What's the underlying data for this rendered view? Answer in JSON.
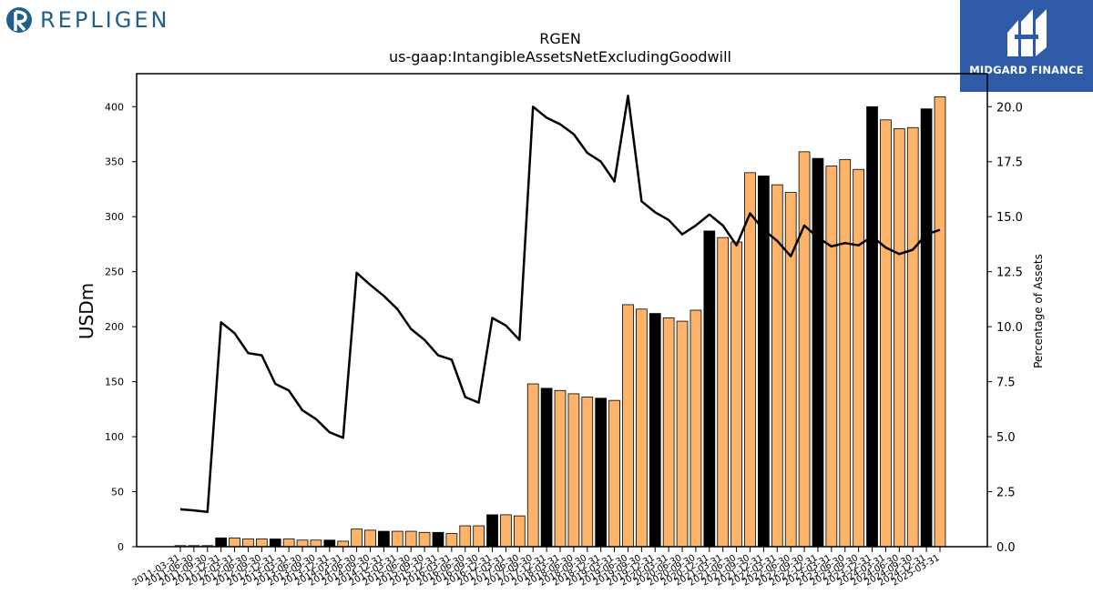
{
  "logos": {
    "left_text": "REPLIGEN",
    "right_text": "MIDGARD FINANCE"
  },
  "colors": {
    "bar_orange": "#FDB46A",
    "bar_black": "#000000",
    "line": "#000000",
    "repligen_blue": "#1f5f8b",
    "midgard_blue": "#2f5aa8"
  },
  "chart_data": {
    "type": "bar",
    "title": "RGEN",
    "subtitle": "us-gaap:IntangibleAssetsNetExcludingGoodwill",
    "ylabel": "USDm",
    "y2label": "Percentage of Assets",
    "ylim": [
      0,
      430
    ],
    "y2lim": [
      0,
      21.5
    ],
    "yticks": [
      0,
      50,
      100,
      150,
      200,
      250,
      300,
      350,
      400
    ],
    "y2ticks": [
      "0.0",
      "2.5",
      "5.0",
      "7.5",
      "10.0",
      "12.5",
      "15.0",
      "17.5",
      "20.0"
    ],
    "grid": false,
    "categories": [
      "2011-03-31",
      "2011-06-30",
      "2011-09-30",
      "2011-12-31",
      "2012-03-31",
      "2012-06-30",
      "2012-09-30",
      "2012-12-31",
      "2013-03-31",
      "2013-06-30",
      "2013-09-30",
      "2013-12-31",
      "2014-03-31",
      "2014-06-30",
      "2014-09-30",
      "2014-12-31",
      "2015-03-31",
      "2015-06-30",
      "2015-09-30",
      "2015-12-31",
      "2016-03-31",
      "2016-06-30",
      "2016-09-30",
      "2016-12-31",
      "2017-03-31",
      "2017-06-30",
      "2017-09-30",
      "2017-12-31",
      "2018-03-31",
      "2018-06-30",
      "2018-09-30",
      "2018-12-31",
      "2019-03-31",
      "2019-06-30",
      "2019-09-30",
      "2019-12-31",
      "2020-03-31",
      "2020-06-30",
      "2020-09-30",
      "2020-12-31",
      "2021-03-31",
      "2021-06-30",
      "2021-09-30",
      "2021-12-31",
      "2022-03-31",
      "2022-06-30",
      "2022-09-30",
      "2022-12-31",
      "2023-03-31",
      "2023-06-30",
      "2023-09-30",
      "2023-12-31",
      "2024-03-31",
      "2024-06-30",
      "2024-09-30",
      "2024-12-31",
      "2025-03-31"
    ],
    "series": [
      {
        "kind": "bar",
        "values": [
          1,
          1,
          1,
          8,
          8,
          7,
          7,
          7,
          7,
          6,
          6,
          6,
          5,
          16,
          15,
          14,
          14,
          14,
          13,
          13,
          12,
          19,
          19,
          29,
          29,
          28,
          148,
          144,
          142,
          139,
          136,
          135,
          133,
          220,
          216,
          212,
          208,
          205,
          215,
          287,
          281,
          277,
          340,
          337,
          329,
          322,
          359,
          353,
          346,
          352,
          343,
          400,
          388,
          380,
          381,
          398,
          409
        ],
        "colors": [
          "orange",
          "orange",
          "orange",
          "black",
          "orange",
          "orange",
          "orange",
          "black",
          "orange",
          "orange",
          "orange",
          "black",
          "orange",
          "orange",
          "orange",
          "black",
          "orange",
          "orange",
          "orange",
          "black",
          "orange",
          "orange",
          "orange",
          "black",
          "orange",
          "orange",
          "orange",
          "black",
          "orange",
          "orange",
          "orange",
          "black",
          "orange",
          "orange",
          "orange",
          "black",
          "orange",
          "orange",
          "orange",
          "black",
          "orange",
          "orange",
          "orange",
          "black",
          "orange",
          "orange",
          "orange",
          "black",
          "orange",
          "orange",
          "orange",
          "black",
          "orange",
          "orange",
          "orange",
          "black",
          "orange"
        ]
      },
      {
        "kind": "line",
        "axis": "right",
        "values": [
          1.7,
          1.65,
          1.58,
          10.2,
          9.7,
          8.8,
          8.7,
          7.4,
          7.1,
          6.2,
          5.8,
          5.2,
          4.95,
          12.45,
          11.9,
          11.4,
          10.8,
          9.9,
          9.4,
          8.7,
          8.5,
          6.8,
          6.55,
          10.4,
          10.05,
          9.4,
          20.0,
          19.5,
          19.2,
          18.75,
          17.9,
          17.5,
          16.6,
          20.5,
          15.7,
          15.2,
          14.85,
          14.2,
          14.6,
          15.1,
          14.6,
          13.7,
          15.15,
          14.4,
          13.9,
          13.2,
          14.6,
          14.05,
          13.65,
          13.8,
          13.7,
          14.1,
          13.6,
          13.3,
          13.5,
          14.2,
          14.4
        ]
      }
    ]
  }
}
